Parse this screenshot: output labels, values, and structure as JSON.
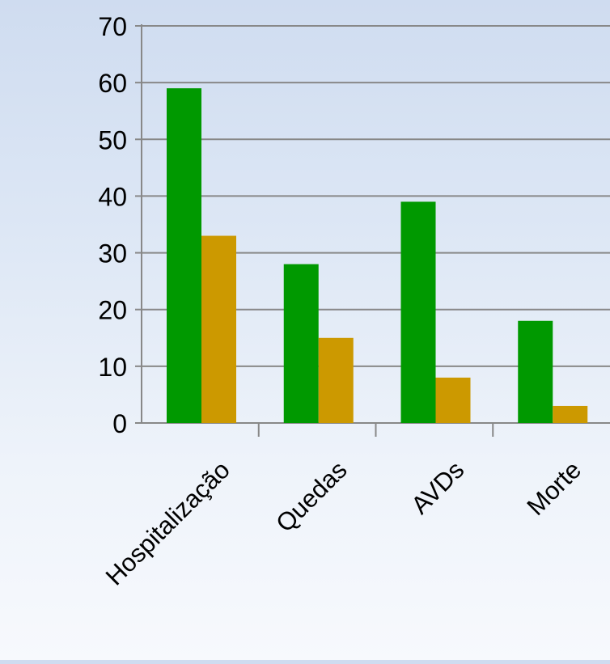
{
  "chart_data": {
    "type": "bar",
    "categories": [
      "Hospitalização",
      "Quedas",
      "AVDs",
      "Morte"
    ],
    "series": [
      {
        "values": [
          59,
          28,
          39,
          18
        ],
        "color": "#009900"
      },
      {
        "values": [
          33,
          15,
          8,
          3
        ],
        "color": "#cc9900"
      }
    ],
    "ylim": [
      0,
      70
    ],
    "yticks": [
      0,
      10,
      20,
      30,
      40,
      50,
      60,
      70
    ],
    "grid": true,
    "title": "",
    "xlabel": "",
    "ylabel": ""
  }
}
